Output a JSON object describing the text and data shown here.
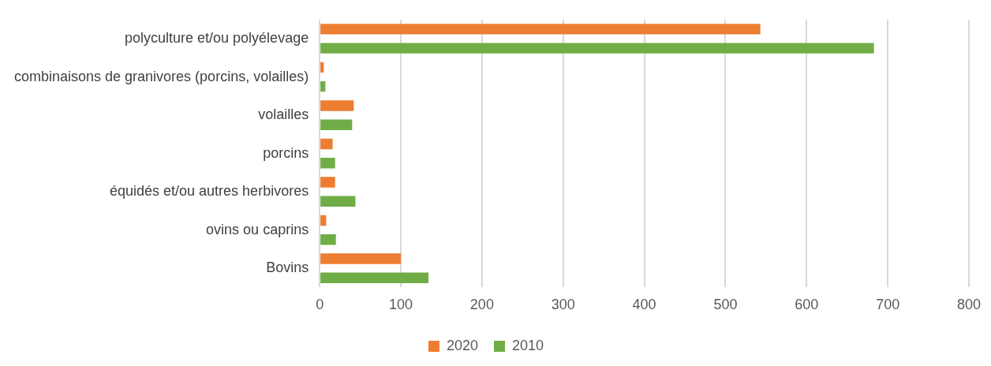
{
  "chart_data": {
    "type": "bar",
    "orientation": "horizontal",
    "categories": [
      "polyculture et/ou polyélevage",
      "combinaisons de granivores (porcins, volailles)",
      "volailles",
      "porcins",
      "équidés et/ou autres herbivores",
      "ovins ou caprins",
      "Bovins"
    ],
    "series": [
      {
        "name": "2020",
        "color": "#ed7d31",
        "values": [
          543,
          5,
          42,
          16,
          19,
          8,
          100
        ]
      },
      {
        "name": "2010",
        "color": "#70ad47",
        "values": [
          683,
          7,
          40,
          19,
          44,
          20,
          134
        ]
      }
    ],
    "xlim": [
      0,
      800
    ],
    "xticks": [
      0,
      100,
      200,
      300,
      400,
      500,
      600,
      700,
      800
    ],
    "grid": "x",
    "legend": "bottom"
  }
}
